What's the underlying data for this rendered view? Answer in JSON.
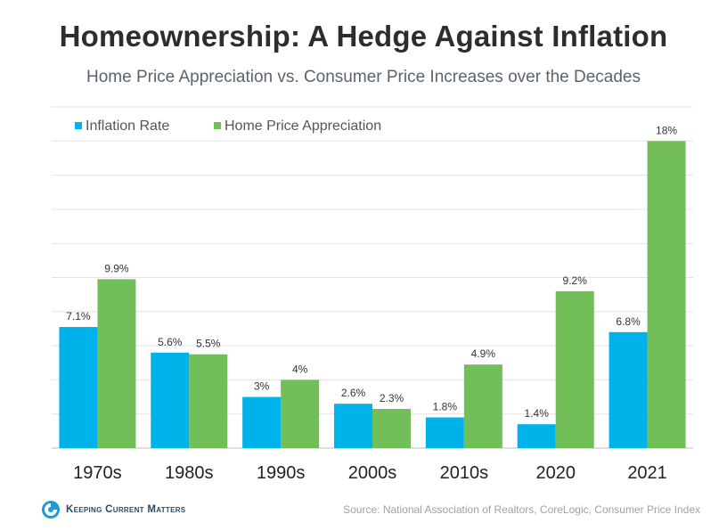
{
  "header": {
    "title": "Homeownership: A Hedge Against Inflation",
    "subtitle": "Home Price Appreciation vs. Consumer Price Increases over the Decades"
  },
  "chart_data": {
    "type": "bar",
    "categories": [
      "1970s",
      "1980s",
      "1990s",
      "2000s",
      "2010s",
      "2020",
      "2021"
    ],
    "series": [
      {
        "name": "Inflation Rate",
        "values": [
          7.1,
          5.6,
          3,
          2.6,
          1.8,
          1.4,
          6.8
        ],
        "labels": [
          "7.1%",
          "5.6%",
          "3%",
          "2.6%",
          "1.8%",
          "1.4%",
          "6.8%"
        ],
        "color": "#00b2ea"
      },
      {
        "name": "Home Price Appreciation",
        "values": [
          9.9,
          5.5,
          4,
          2.3,
          4.9,
          9.2,
          18
        ],
        "labels": [
          "9.9%",
          "5.5%",
          "4%",
          "2.3%",
          "4.9%",
          "9.2%",
          "18%"
        ],
        "color": "#72bf5a"
      }
    ],
    "ylim": [
      0,
      20
    ],
    "grid": true,
    "legend": "top-left"
  },
  "footer": {
    "brand": "Keeping Current Matters",
    "source": "Source: National Association of Realtors, CoreLogic, Consumer Price Index"
  }
}
